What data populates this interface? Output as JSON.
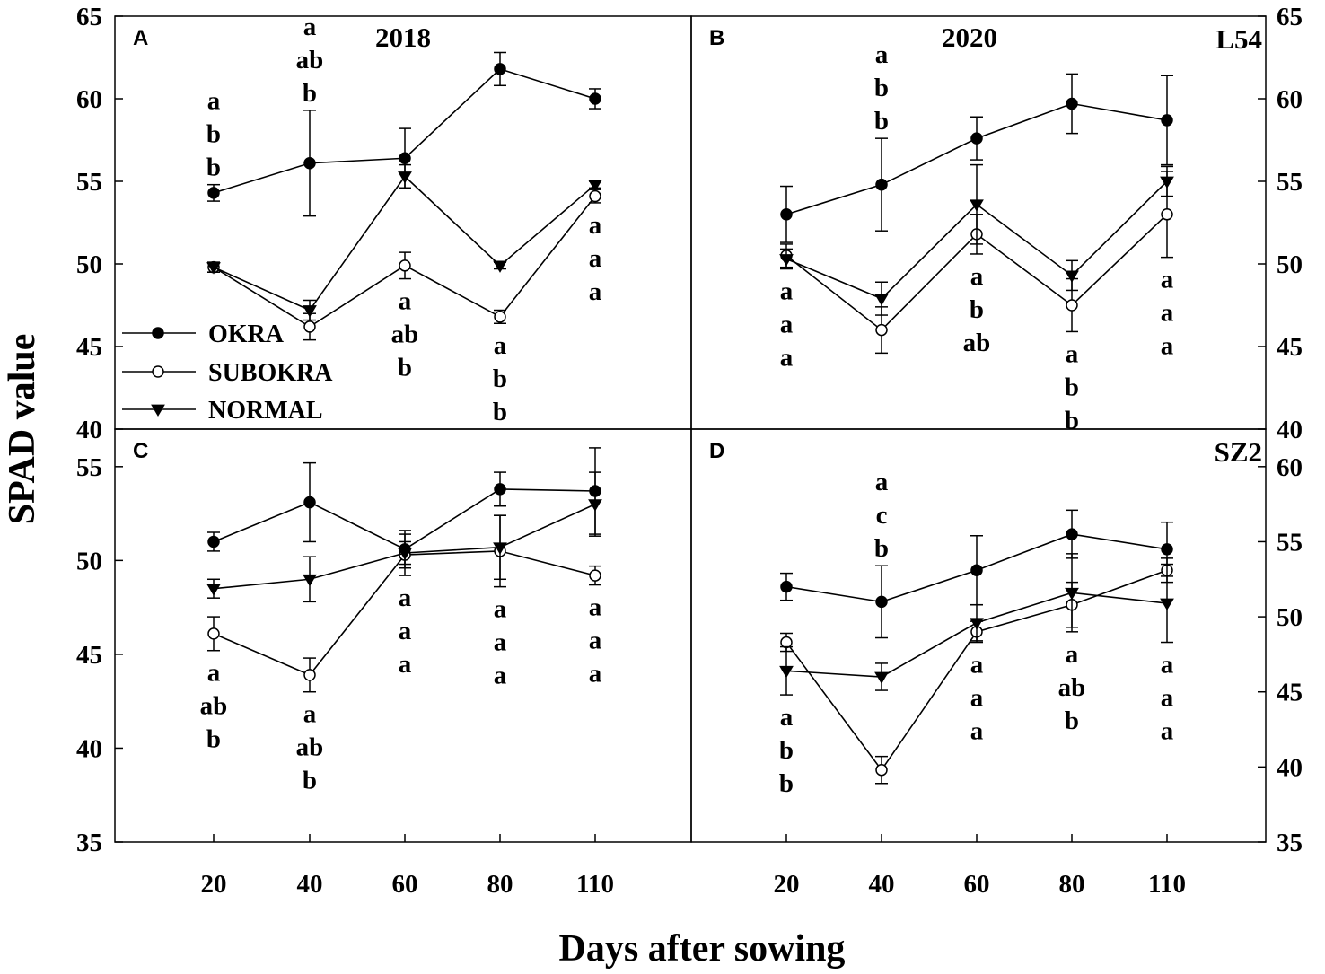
{
  "chart_data": {
    "type": "line",
    "ylabel": "SPAD value",
    "xlabel": "Days after sowing",
    "x_ticks": [
      "20",
      "40",
      "60",
      "80",
      "110"
    ],
    "series_names": [
      "OKRA",
      "SUBOKRA",
      "NORMAL"
    ],
    "legend": {
      "placement": "panel-A lower-left",
      "entries": [
        "OKRA",
        "SUBOKRA",
        "NORMAL"
      ]
    },
    "panels": [
      {
        "id": "A",
        "letter": "A",
        "title": "2018",
        "cultivar": "",
        "ylim": [
          40,
          65
        ],
        "yticks": [
          40,
          45,
          50,
          55,
          60,
          65
        ],
        "ytick_labels": [
          "40",
          "45",
          "50",
          "55",
          "60",
          "65"
        ],
        "yaxis_side": "left",
        "series": [
          {
            "name": "OKRA",
            "values": [
              54.3,
              56.1,
              56.4,
              61.8,
              60.0
            ],
            "errors": [
              0.5,
              3.2,
              1.8,
              1.0,
              0.6
            ]
          },
          {
            "name": "SUBOKRA",
            "values": [
              49.8,
              46.2,
              49.9,
              46.8,
              54.1
            ],
            "errors": [
              0.3,
              0.8,
              0.8,
              0.4,
              0.4
            ]
          },
          {
            "name": "NORMAL",
            "values": [
              49.8,
              47.2,
              55.3,
              49.9,
              54.8
            ],
            "errors": [
              0.3,
              0.6,
              0.7,
              0.2,
              0.2
            ]
          }
        ],
        "annotations": [
          {
            "x_index": 0,
            "position": "above",
            "letters": [
              "a",
              "b",
              "b"
            ]
          },
          {
            "x_index": 1,
            "position": "above",
            "letters": [
              "a",
              "ab",
              "b"
            ]
          },
          {
            "x_index": 2,
            "position": "below",
            "letters": [
              "a",
              "ab",
              "b"
            ]
          },
          {
            "x_index": 3,
            "position": "below",
            "letters": [
              "a",
              "b",
              "b"
            ]
          },
          {
            "x_index": 4,
            "position": "below",
            "letters": [
              "a",
              "a",
              "a"
            ]
          }
        ]
      },
      {
        "id": "B",
        "letter": "B",
        "title": "2020",
        "cultivar": "L54",
        "ylim": [
          40,
          65
        ],
        "yticks": [
          40,
          45,
          50,
          55,
          60,
          65
        ],
        "ytick_labels": [
          "40",
          "45",
          "50",
          "55",
          "60",
          "65"
        ],
        "yaxis_side": "right",
        "series": [
          {
            "name": "OKRA",
            "values": [
              53.0,
              54.8,
              57.6,
              59.7,
              58.7
            ],
            "errors": [
              1.7,
              2.8,
              1.3,
              1.8,
              2.7
            ]
          },
          {
            "name": "SUBOKRA",
            "values": [
              50.5,
              46.0,
              51.8,
              47.5,
              53.0
            ],
            "errors": [
              0.7,
              1.4,
              1.2,
              1.6,
              2.6
            ]
          },
          {
            "name": "NORMAL",
            "values": [
              50.3,
              47.9,
              53.6,
              49.3,
              55.0
            ],
            "errors": [
              0.6,
              1.0,
              2.4,
              0.9,
              0.9
            ]
          }
        ],
        "annotations": [
          {
            "x_index": 0,
            "position": "below",
            "letters": [
              "a",
              "a",
              "a"
            ]
          },
          {
            "x_index": 1,
            "position": "above",
            "letters": [
              "a",
              "b",
              "b"
            ]
          },
          {
            "x_index": 2,
            "position": "below",
            "letters": [
              "a",
              "b",
              "ab"
            ]
          },
          {
            "x_index": 3,
            "position": "below",
            "letters": [
              "a",
              "b",
              "b"
            ]
          },
          {
            "x_index": 4,
            "position": "below",
            "letters": [
              "a",
              "a",
              "a"
            ]
          }
        ]
      },
      {
        "id": "C",
        "letter": "C",
        "title": "",
        "cultivar": "",
        "ylim": [
          35,
          57
        ],
        "yticks": [
          35,
          40,
          45,
          50,
          55
        ],
        "ytick_labels": [
          "35",
          "40",
          "45",
          "50",
          "55"
        ],
        "yaxis_side": "left",
        "series": [
          {
            "name": "OKRA",
            "values": [
              51.0,
              53.1,
              50.6,
              53.8,
              53.7
            ],
            "errors": [
              0.5,
              2.1,
              1.0,
              0.9,
              2.3
            ]
          },
          {
            "name": "SUBOKRA",
            "values": [
              46.1,
              43.9,
              50.3,
              50.5,
              49.2
            ],
            "errors": [
              0.9,
              0.9,
              1.1,
              1.9,
              0.5
            ]
          },
          {
            "name": "NORMAL",
            "values": [
              48.5,
              49.0,
              50.4,
              50.7,
              53.0
            ],
            "errors": [
              0.5,
              1.2,
              0.6,
              1.7,
              1.7
            ]
          }
        ],
        "annotations": [
          {
            "x_index": 0,
            "position": "below",
            "letters": [
              "a",
              "ab",
              "b"
            ]
          },
          {
            "x_index": 1,
            "position": "below",
            "letters": [
              "a",
              "ab",
              "b"
            ]
          },
          {
            "x_index": 2,
            "position": "below",
            "letters": [
              "a",
              "a",
              "a"
            ]
          },
          {
            "x_index": 3,
            "position": "below",
            "letters": [
              "a",
              "a",
              "a"
            ]
          },
          {
            "x_index": 4,
            "position": "below",
            "letters": [
              "a",
              "a",
              "a"
            ]
          }
        ]
      },
      {
        "id": "D",
        "letter": "D",
        "title": "",
        "cultivar": "SZ2",
        "ylim": [
          35,
          62.5
        ],
        "yticks": [
          35,
          40,
          45,
          50,
          55,
          60
        ],
        "ytick_labels": [
          "35",
          "40",
          "45",
          "50",
          "55",
          "60"
        ],
        "yaxis_side": "right",
        "series": [
          {
            "name": "OKRA",
            "values": [
              52.0,
              51.0,
              53.1,
              55.5,
              54.5
            ],
            "errors": [
              0.9,
              2.4,
              2.3,
              1.6,
              1.8
            ]
          },
          {
            "name": "SUBOKRA",
            "values": [
              48.3,
              39.8,
              49.0,
              50.8,
              53.1
            ],
            "errors": [
              0.6,
              0.9,
              0.7,
              1.5,
              0.8
            ]
          },
          {
            "name": "NORMAL",
            "values": [
              46.4,
              46.0,
              49.6,
              51.6,
              50.9
            ],
            "errors": [
              1.6,
              0.9,
              1.2,
              2.6,
              2.6
            ]
          }
        ],
        "annotations": [
          {
            "x_index": 0,
            "position": "below",
            "letters": [
              "a",
              "b",
              "b"
            ]
          },
          {
            "x_index": 1,
            "position": "above",
            "letters": [
              "a",
              "c",
              "b"
            ]
          },
          {
            "x_index": 2,
            "position": "below",
            "letters": [
              "a",
              "a",
              "a"
            ]
          },
          {
            "x_index": 3,
            "position": "below",
            "letters": [
              "a",
              "ab",
              "b"
            ]
          },
          {
            "x_index": 4,
            "position": "below",
            "letters": [
              "a",
              "a",
              "a"
            ]
          }
        ]
      }
    ]
  }
}
